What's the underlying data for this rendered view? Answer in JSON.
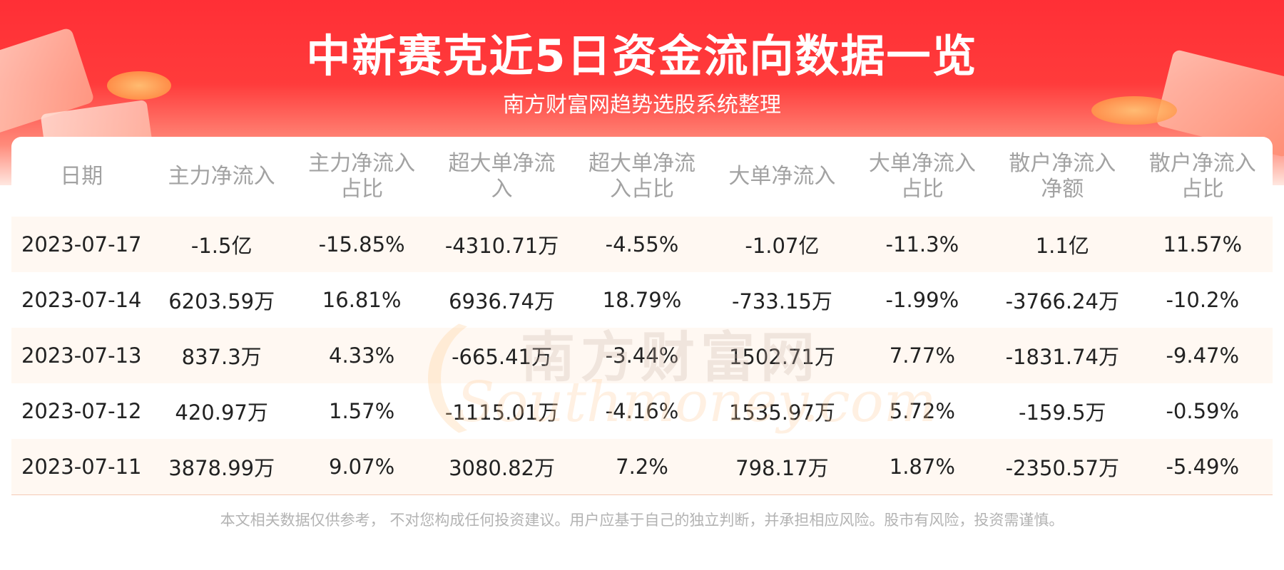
{
  "header": {
    "title": "中新赛克近5日资金流向数据一览",
    "subtitle": "南方财富网趋势选股系统整理"
  },
  "watermark": {
    "cn": "南方财富网",
    "en": "Southmoney.com"
  },
  "table": {
    "headers": [
      {
        "line1": "日期",
        "line2": ""
      },
      {
        "line1": "主力净流入",
        "line2": ""
      },
      {
        "line1": "主力净流入",
        "line2": "占比"
      },
      {
        "line1": "超大单净流",
        "line2": "入"
      },
      {
        "line1": "超大单净流",
        "line2": "入占比"
      },
      {
        "line1": "大单净流入",
        "line2": ""
      },
      {
        "line1": "大单净流入",
        "line2": "占比"
      },
      {
        "line1": "散户净流入",
        "line2": "净额"
      },
      {
        "line1": "散户净流入",
        "line2": "占比"
      }
    ],
    "rows": [
      [
        "2023-07-17",
        "-1.5亿",
        "-15.85%",
        "-4310.71万",
        "-4.55%",
        "-1.07亿",
        "-11.3%",
        "1.1亿",
        "11.57%"
      ],
      [
        "2023-07-14",
        "6203.59万",
        "16.81%",
        "6936.74万",
        "18.79%",
        "-733.15万",
        "-1.99%",
        "-3766.24万",
        "-10.2%"
      ],
      [
        "2023-07-13",
        "837.3万",
        "4.33%",
        "-665.41万",
        "-3.44%",
        "1502.71万",
        "7.77%",
        "-1831.74万",
        "-9.47%"
      ],
      [
        "2023-07-12",
        "420.97万",
        "1.57%",
        "-1115.01万",
        "-4.16%",
        "1535.97万",
        "5.72%",
        "-159.5万",
        "-0.59%"
      ],
      [
        "2023-07-11",
        "3878.99万",
        "9.07%",
        "3080.82万",
        "7.2%",
        "798.17万",
        "1.87%",
        "-2350.57万",
        "-5.49%"
      ]
    ]
  },
  "footer": {
    "disclaimer": "本文相关数据仅供参考， 不对您构成任何投资建议。用户应基于自己的独立判断，并承担相应风险。股市有风险，投资需谨慎。"
  },
  "colors": {
    "banner_red": "#ff2f36",
    "header_text": "#a2a2a2",
    "cell_text": "#222222",
    "stripe": "#fff8f2"
  }
}
